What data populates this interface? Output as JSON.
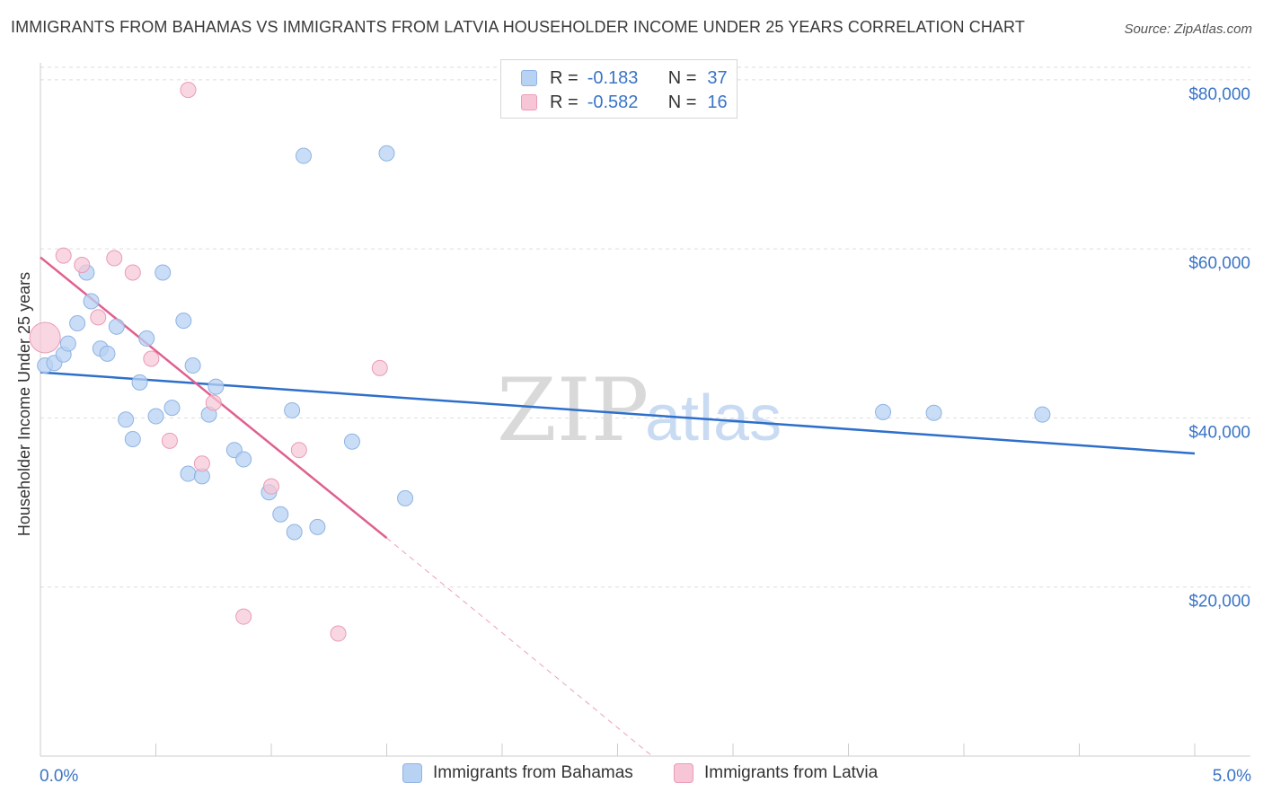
{
  "header": {
    "title": "IMMIGRANTS FROM BAHAMAS VS IMMIGRANTS FROM LATVIA HOUSEHOLDER INCOME UNDER 25 YEARS CORRELATION CHART",
    "source": "Source: ZipAtlas.com"
  },
  "watermark": {
    "zip": "ZIP",
    "atlas": "atlas"
  },
  "legend": {
    "rows": [
      {
        "r_label": "R =",
        "r_value": "-0.183",
        "n_label": "N =",
        "n_value": "37"
      },
      {
        "r_label": "R =",
        "r_value": "-0.582",
        "n_label": "N =",
        "n_value": "16"
      }
    ]
  },
  "colors": {
    "blue_fill": "#b8d2f3",
    "blue_stroke": "#8fb3e3",
    "blue_line": "#2e6fca",
    "pink_fill": "#f7c6d6",
    "pink_stroke": "#ea9bb5",
    "pink_line": "#e0608f",
    "axis_label": "#3a74c7",
    "grid": "#dddddd"
  },
  "chart_data": {
    "type": "scatter",
    "title": "IMMIGRANTS FROM BAHAMAS VS IMMIGRANTS FROM LATVIA HOUSEHOLDER INCOME UNDER 25 YEARS CORRELATION CHART",
    "xlabel": "",
    "ylabel": "Householder Income Under 25 years",
    "xlim": [
      0,
      5
    ],
    "ylim": [
      0,
      82000
    ],
    "x_tick_labels": [
      "0.0%",
      "5.0%"
    ],
    "y_ticks": [
      20000,
      40000,
      60000,
      80000
    ],
    "y_tick_labels": [
      "$20,000",
      "$40,000",
      "$60,000",
      "$80,000"
    ],
    "series": [
      {
        "name": "Immigrants from Bahamas",
        "color": "#b8d2f3",
        "points": [
          [
            0.02,
            46200
          ],
          [
            0.06,
            46500
          ],
          [
            0.1,
            47500
          ],
          [
            0.12,
            48800
          ],
          [
            0.16,
            51200
          ],
          [
            0.2,
            57200
          ],
          [
            0.22,
            53800
          ],
          [
            0.26,
            48200
          ],
          [
            0.29,
            47600
          ],
          [
            0.33,
            50800
          ],
          [
            0.37,
            39800
          ],
          [
            0.4,
            37500
          ],
          [
            0.43,
            44200
          ],
          [
            0.46,
            49400
          ],
          [
            0.5,
            40200
          ],
          [
            0.53,
            57200
          ],
          [
            0.57,
            41200
          ],
          [
            0.62,
            51500
          ],
          [
            0.64,
            33400
          ],
          [
            0.66,
            46200
          ],
          [
            0.7,
            33100
          ],
          [
            0.73,
            40400
          ],
          [
            0.76,
            43700
          ],
          [
            0.84,
            36200
          ],
          [
            0.88,
            35100
          ],
          [
            0.99,
            31200
          ],
          [
            1.04,
            28600
          ],
          [
            1.09,
            40900
          ],
          [
            1.1,
            26500
          ],
          [
            1.14,
            71000
          ],
          [
            1.2,
            27100
          ],
          [
            1.35,
            37200
          ],
          [
            1.5,
            71300
          ],
          [
            1.58,
            30500
          ],
          [
            3.65,
            40700
          ],
          [
            3.87,
            40600
          ],
          [
            4.34,
            40400
          ]
        ],
        "trend": {
          "x0": 0,
          "y0": 45400,
          "x1": 5,
          "y1": 35800
        }
      },
      {
        "name": "Immigrants from Latvia",
        "color": "#f7c6d6",
        "points": [
          [
            0.02,
            49500
          ],
          [
            0.1,
            59200
          ],
          [
            0.18,
            58100
          ],
          [
            0.25,
            51900
          ],
          [
            0.32,
            58900
          ],
          [
            0.4,
            57200
          ],
          [
            0.48,
            47000
          ],
          [
            0.56,
            37300
          ],
          [
            0.64,
            78800
          ],
          [
            0.7,
            34600
          ],
          [
            0.75,
            41800
          ],
          [
            0.88,
            16500
          ],
          [
            1.0,
            31900
          ],
          [
            1.12,
            36200
          ],
          [
            1.29,
            14500
          ],
          [
            1.47,
            45900
          ]
        ],
        "trend": {
          "x0": 0,
          "y0": 59000,
          "x1": 1.5,
          "y1": 25800,
          "dash_x1": 2.65,
          "dash_y1": 0
        }
      }
    ]
  },
  "bottom_legend": [
    {
      "label": "Immigrants from Bahamas"
    },
    {
      "label": "Immigrants from Latvia"
    }
  ]
}
